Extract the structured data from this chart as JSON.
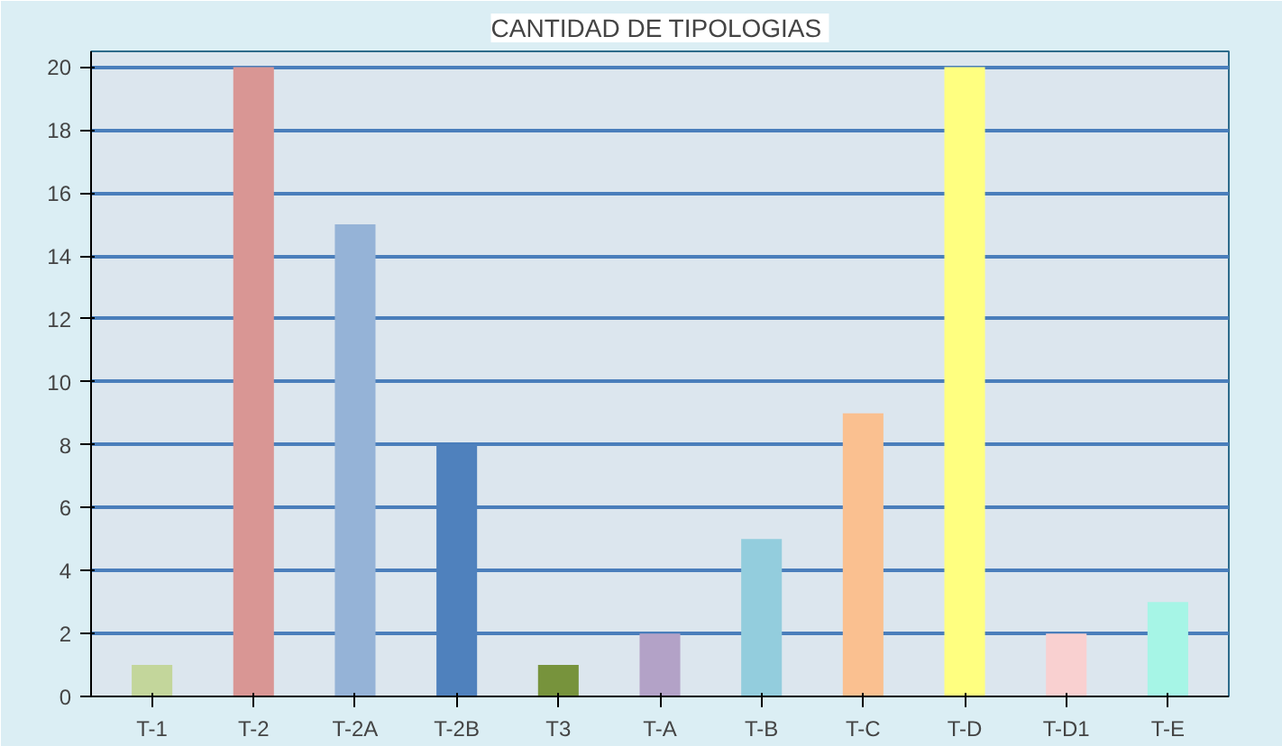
{
  "chart_data": {
    "type": "bar",
    "title": "CANTIDAD  DE TIPOLOGIAS",
    "categories": [
      "T-1",
      "T-2",
      "T-2A",
      "T-2B",
      "T3",
      "T-A",
      "T-B",
      "T-C",
      "T-D",
      "T-D1",
      "T-E"
    ],
    "values": [
      1,
      20,
      15,
      8,
      1,
      2,
      5,
      9,
      20,
      2,
      3
    ],
    "colors": [
      "#c3d69b",
      "#d99694",
      "#95b3d7",
      "#4f81bd",
      "#77933c",
      "#b3a2c7",
      "#93cddd",
      "#fac090",
      "#ffff80",
      "#f9d0d0",
      "#a6f5e6"
    ],
    "ylim": [
      0,
      20.5
    ],
    "yticks": [
      0,
      2,
      4,
      6,
      8,
      10,
      12,
      14,
      16,
      18,
      20
    ],
    "grid": "y"
  }
}
